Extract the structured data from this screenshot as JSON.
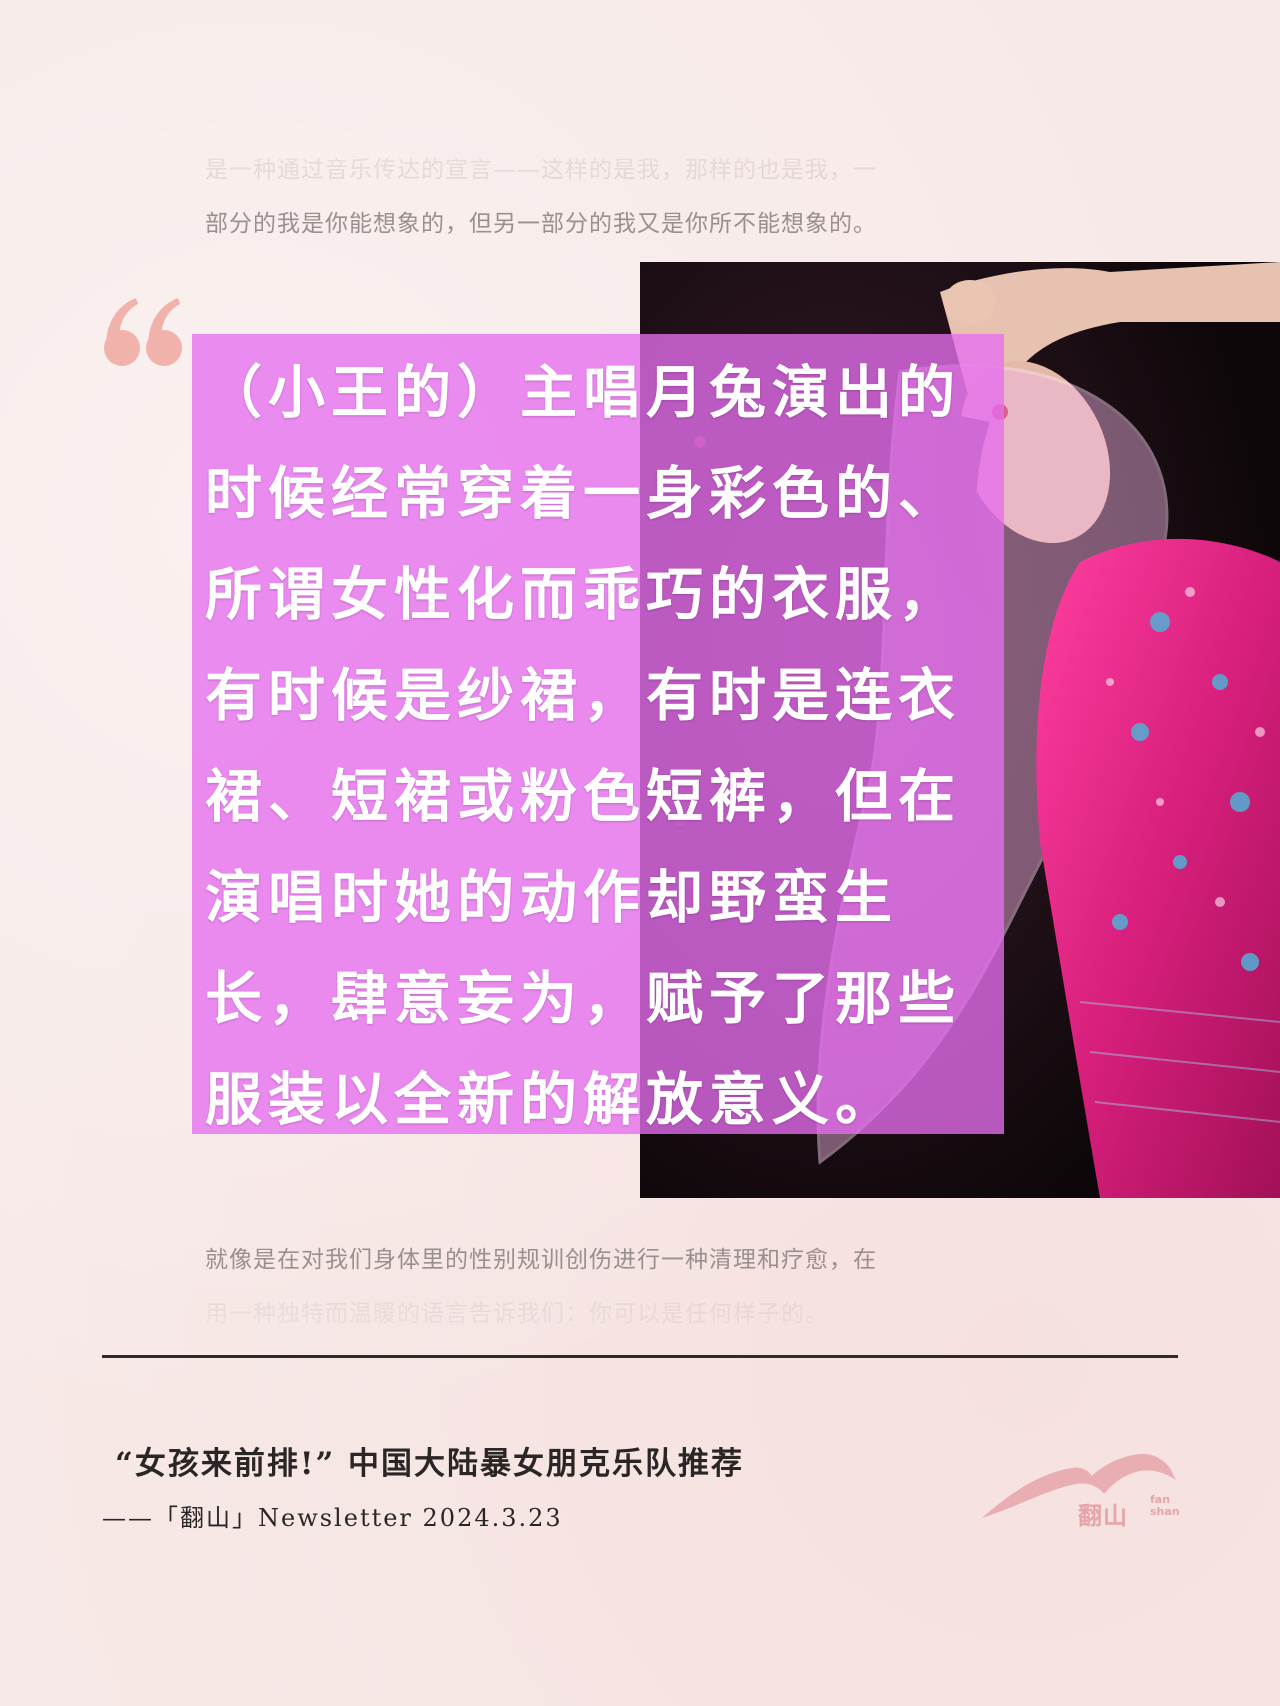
{
  "intro_lines": [
    "是一种通过音乐传达的宣言——这样的是我，那样的也是我，一",
    "部分的我是你能想象的，但另一部分的我又是你所不能想象的。"
  ],
  "quote": {
    "mark": "“",
    "lines": [
      "（小王的）主唱月兔演出的",
      "时候经常穿着一身彩色的、",
      "所谓女性化而乖巧的衣服，",
      "有时候是纱裙，有时是连衣",
      "裙、短裙或粉色短裤，但在",
      "演唱时她的动作却野蛮生",
      "长，肆意妄为，赋予了那些",
      "服装以全新的解放意义。"
    ]
  },
  "outro_lines": [
    "就像是在对我们身体里的性别规训创伤进行一种清理和疗愈，在",
    "用一种独特而温暖的语言告诉我们：你可以是任何样子的。"
  ],
  "footer": {
    "title": "“女孩来前排!” 中国大陆暴女朋克乐队推荐",
    "source": "——「翻山」Newsletter 2024.3.23"
  },
  "logo": {
    "cn": "翻山",
    "en_top": "fan",
    "en_bottom": "shan"
  },
  "colors": {
    "background": "#f7e9e7",
    "overlay": "#e66ef0",
    "quote_mark": "#f2b2ac",
    "logo": "#e6a5a8"
  }
}
